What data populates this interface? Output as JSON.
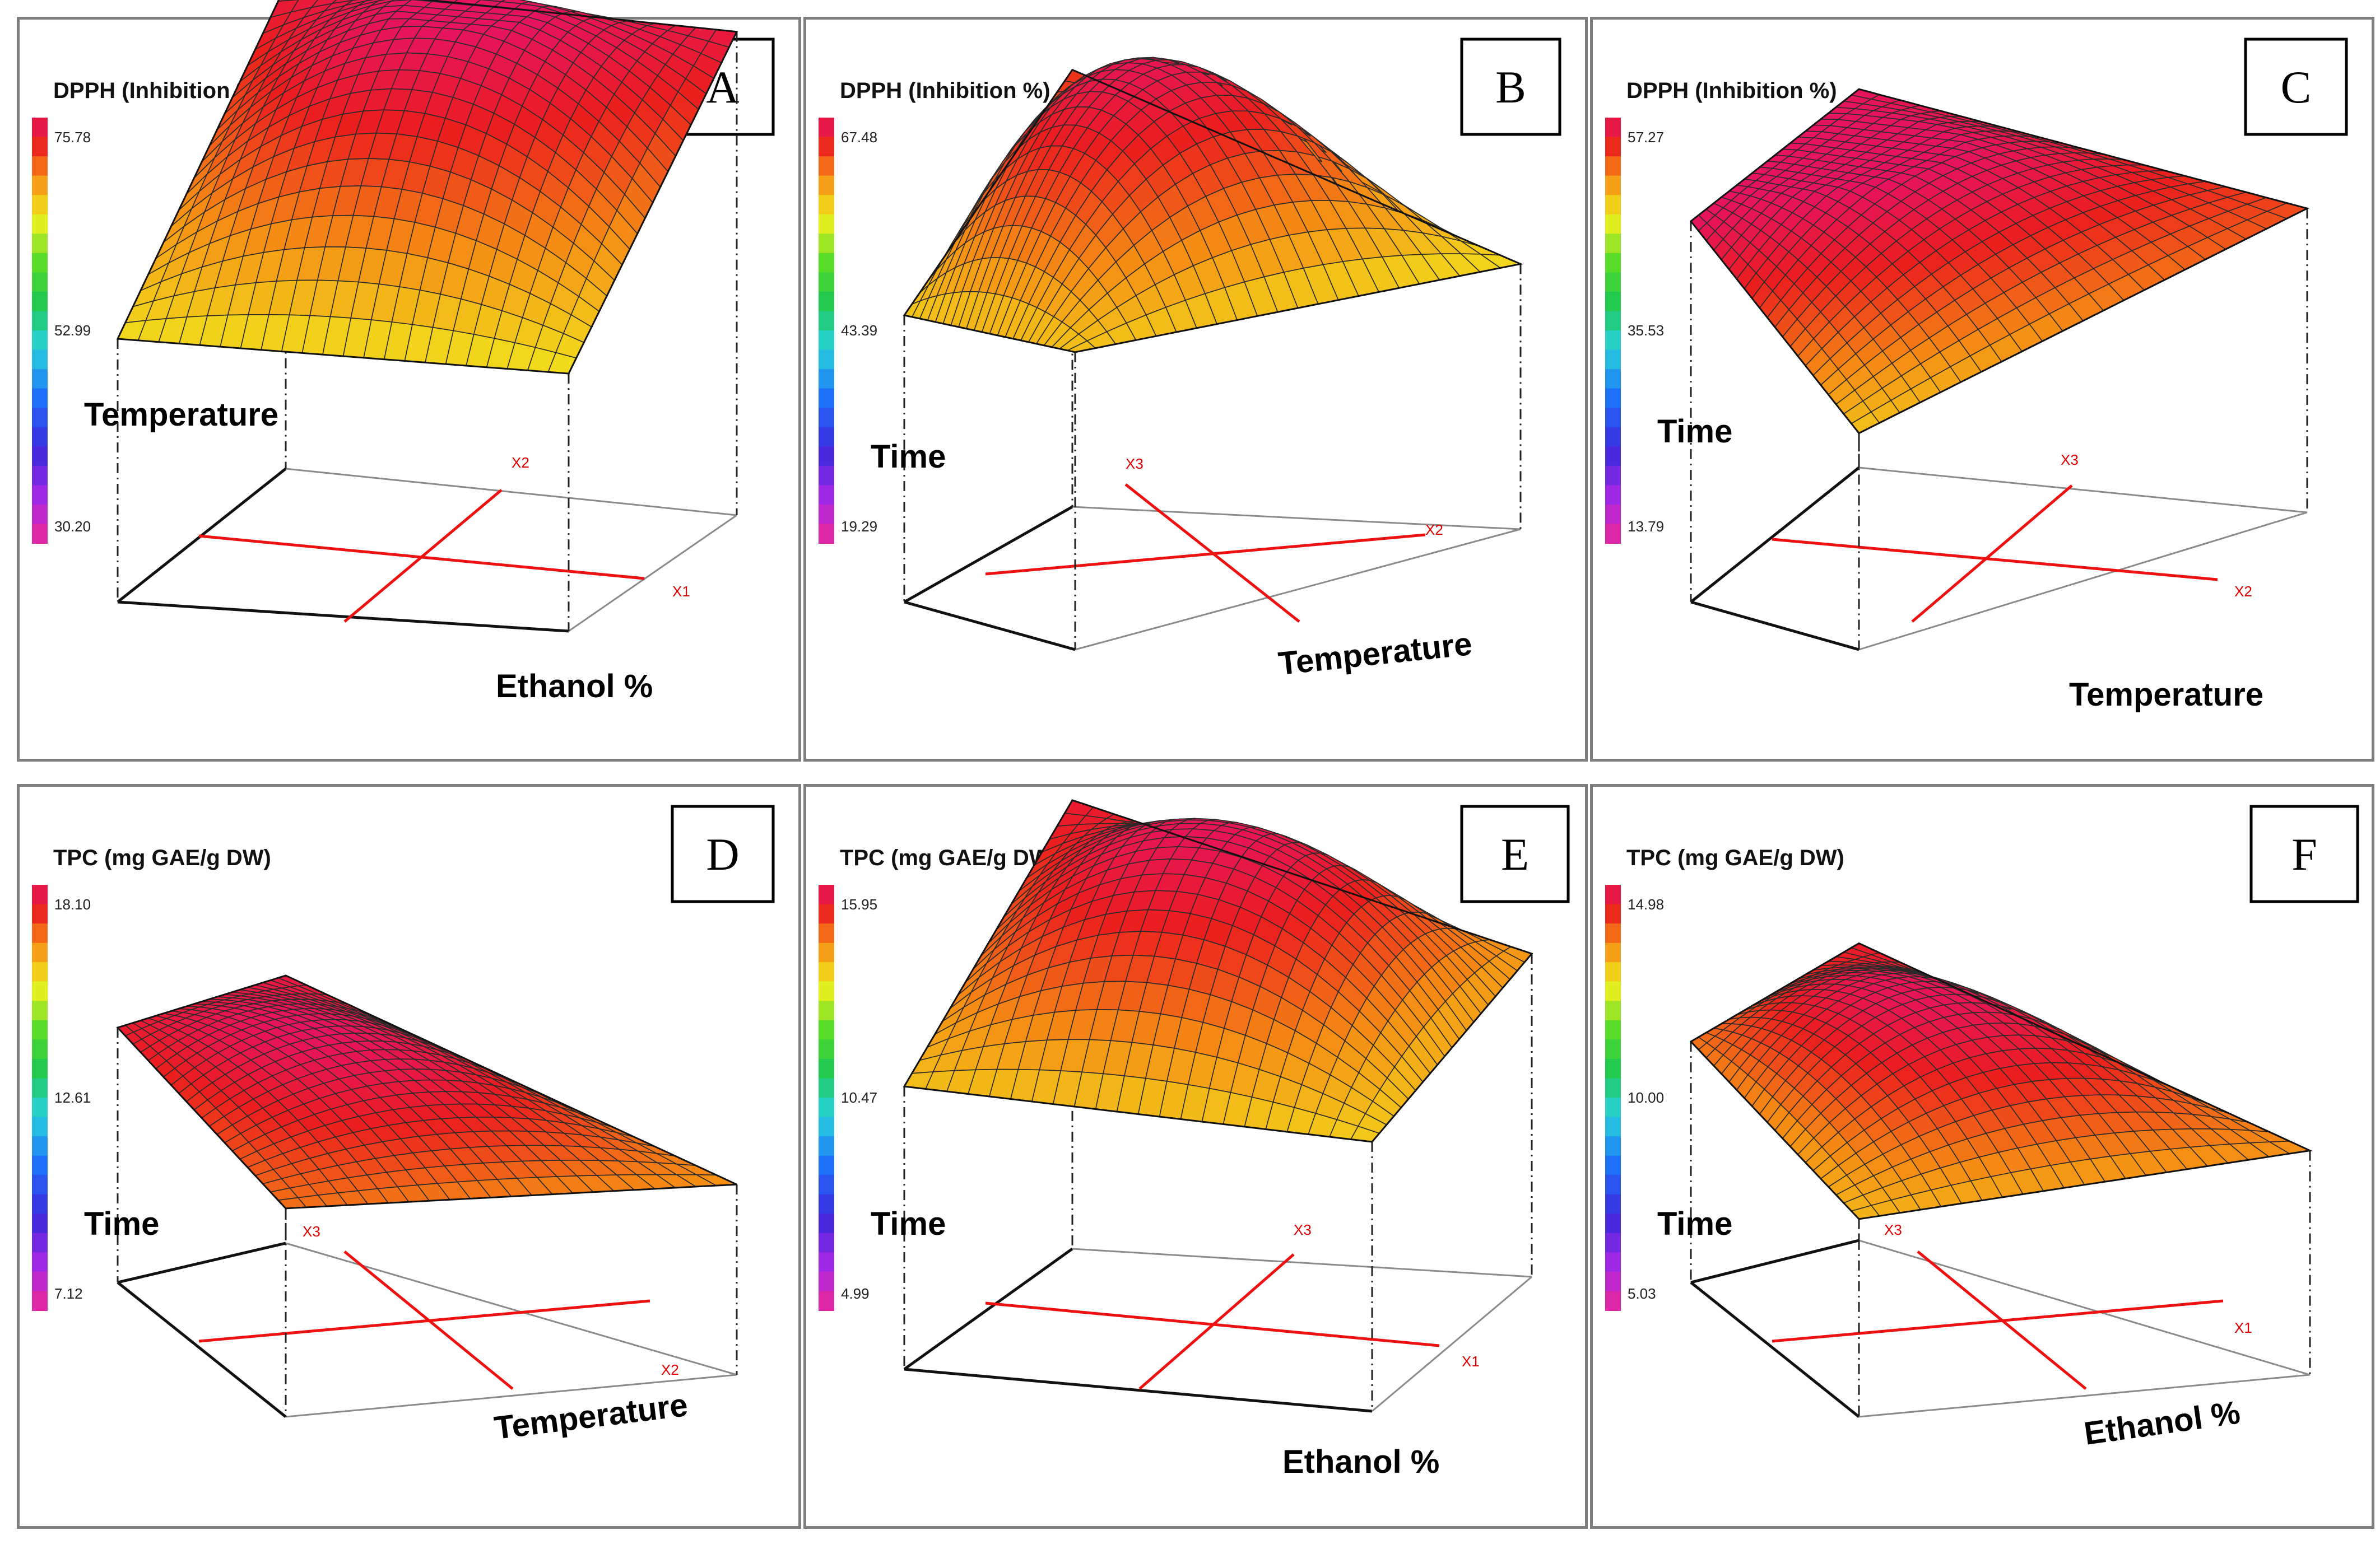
{
  "figure": {
    "layout": "2 rows x 3 columns of response-surface plots"
  },
  "chart_data": [
    {
      "type": "surface3d",
      "panel": "A",
      "title": "DPPH (Inhibition %)",
      "scale_ticks": [
        "75.78",
        "52.99",
        "30.20"
      ],
      "z_range": [
        30.2,
        75.78
      ],
      "axis_label_left": "Temperature",
      "axis_label_right": "Ethanol %",
      "var_back": "X2",
      "var_right": "X1",
      "corners": {
        "left": 53.5,
        "back": 73.0,
        "front": 53.0,
        "right": 73.0
      },
      "peak": 75.78
    },
    {
      "type": "surface3d",
      "panel": "B",
      "title": "DPPH (Inhibition %)",
      "scale_ticks": [
        "67.48",
        "43.39",
        "19.29"
      ],
      "z_range": [
        19.29,
        67.48
      ],
      "axis_label_left": "Time",
      "axis_label_right": "Temperature",
      "var_back": "X3",
      "var_right": "X2",
      "corners": {
        "left": 46.0,
        "back": 60.0,
        "front": 47.0,
        "right": 44.0
      },
      "peak": 67.48
    },
    {
      "type": "surface3d",
      "panel": "C",
      "title": "DPPH (Inhibition %)",
      "scale_ticks": [
        "57.27",
        "35.53",
        "13.79"
      ],
      "z_range": [
        13.79,
        57.27
      ],
      "axis_label_left": "Time",
      "axis_label_right": "Temperature",
      "var_back": "X3",
      "var_right": "X2",
      "corners": {
        "left": 57.27,
        "back": 57.0,
        "front": 38.5,
        "right": 48.5
      },
      "peak": 57.27
    },
    {
      "type": "surface3d",
      "panel": "D",
      "title": "TPC (mg GAE/g DW)",
      "scale_ticks": [
        "18.10",
        "12.61",
        "7.12"
      ],
      "z_range": [
        7.12,
        18.1
      ],
      "axis_label_left": "Time",
      "axis_label_right": "Temperature",
      "var_back": "X3",
      "var_right": "X2",
      "corners": {
        "left": 17.0,
        "back": 17.5,
        "front": 15.2,
        "right": 14.5
      },
      "peak": 18.1
    },
    {
      "type": "surface3d",
      "panel": "E",
      "title": "TPC (mg GAE/g DW)",
      "scale_ticks": [
        "15.95",
        "10.47",
        "4.99"
      ],
      "z_range": [
        4.99,
        15.95
      ],
      "axis_label_left": "Time",
      "axis_label_right": "Ethanol %",
      "var_back": "X3",
      "var_right": "X1",
      "corners": {
        "left": 11.3,
        "back": 15.0,
        "front": 11.0,
        "right": 12.2
      },
      "peak": 15.95
    },
    {
      "type": "surface3d",
      "panel": "F",
      "title": "TPC (mg GAE/g DW)",
      "scale_ticks": [
        "14.98",
        "10.00",
        "5.03"
      ],
      "z_range": [
        5.03,
        14.98
      ],
      "axis_label_left": "Time",
      "axis_label_right": "Ethanol %",
      "var_back": "X3",
      "var_right": "X1",
      "corners": {
        "left": 12.3,
        "back": 14.0,
        "front": 11.0,
        "right": 11.8
      },
      "peak": 14.98
    }
  ]
}
